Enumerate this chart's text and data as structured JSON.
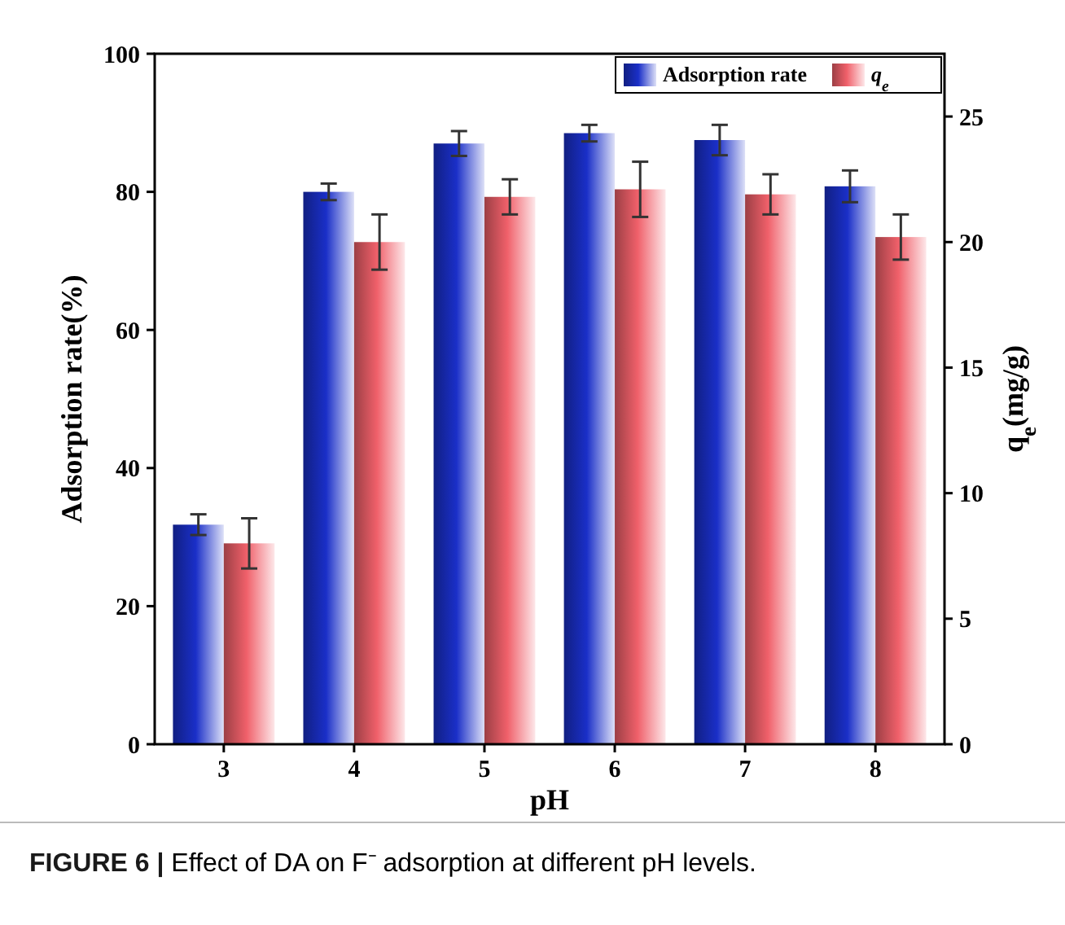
{
  "chart_data": {
    "type": "bar",
    "xlabel": "pH",
    "ylabel": "Adsorption rate(%)",
    "y2label": "q$_{e}$(mg/g)",
    "categories": [
      "3",
      "4",
      "5",
      "6",
      "7",
      "8"
    ],
    "series": [
      {
        "name": "Adsorption rate",
        "color": "#1a2fc8",
        "values": [
          31.8,
          80.0,
          87.0,
          88.5,
          87.5,
          80.8
        ],
        "errors": [
          1.5,
          1.2,
          1.8,
          1.2,
          2.2,
          2.3
        ]
      },
      {
        "name": "q$_{e}$",
        "color": "#f0606a",
        "axis": "y2",
        "values": [
          8.0,
          20.0,
          21.8,
          22.1,
          21.9,
          20.2
        ],
        "errors": [
          1.0,
          1.1,
          0.7,
          1.1,
          0.8,
          0.9
        ]
      }
    ],
    "ylim": [
      0,
      100
    ],
    "yticks": [
      0,
      20,
      40,
      60,
      80,
      100
    ],
    "y2lim": [
      0,
      27.5
    ],
    "y2ticks": [
      0,
      5,
      10,
      15,
      20,
      25
    ],
    "legend": "top right",
    "grid": false,
    "annotations": [
      "FIGURE 6 | Effect of DA on F⁻ adsorption at different pH levels."
    ]
  }
}
